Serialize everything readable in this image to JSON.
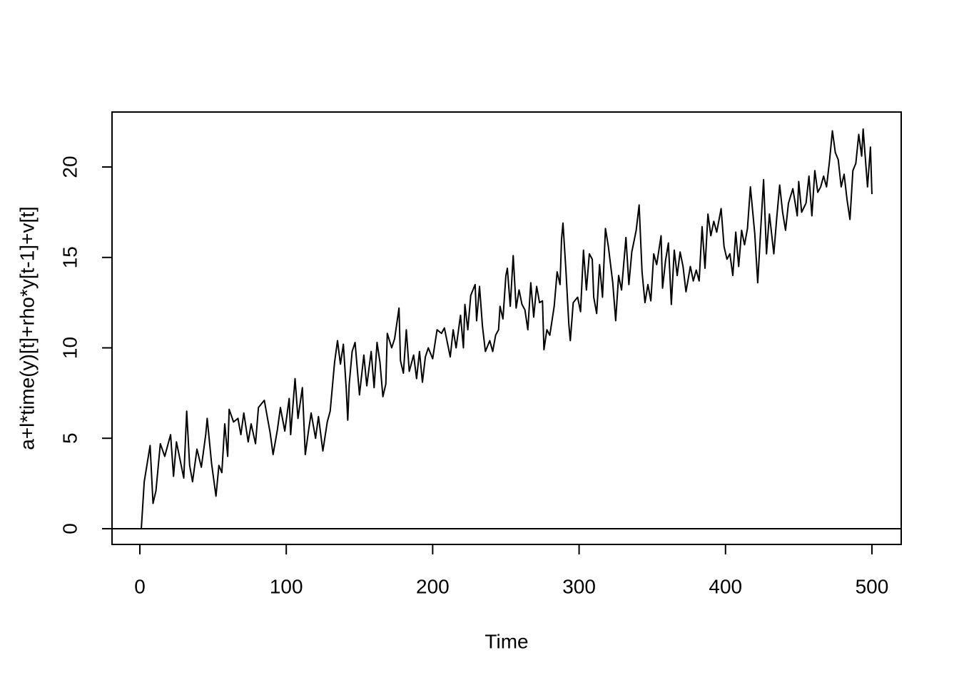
{
  "chart_data": {
    "type": "line",
    "x_label": "Time",
    "y_label": "a+l*time(y)[t]+rho*y[t-1]+v[t]",
    "xlim": [
      -19,
      520
    ],
    "ylim": [
      -0.87,
      23.04
    ],
    "xticks": [
      0,
      100,
      200,
      300,
      400,
      500
    ],
    "yticks": [
      0,
      5,
      10,
      15,
      20
    ],
    "hline": 0,
    "color": "#000000",
    "x": [
      1,
      3,
      7,
      9,
      11,
      14,
      17,
      21,
      23,
      25,
      30,
      32,
      34,
      36,
      39,
      42,
      45,
      46,
      49,
      52,
      54,
      56,
      58,
      60,
      61,
      64,
      67,
      69,
      71,
      74,
      76,
      79,
      81,
      85,
      89,
      91,
      94,
      96,
      99,
      102,
      103,
      106,
      108,
      111,
      113,
      115,
      117,
      120,
      122,
      125,
      128,
      130,
      133,
      135,
      137,
      139,
      141,
      142,
      143,
      145,
      147,
      150,
      153,
      155,
      158,
      160,
      162,
      164,
      166,
      168,
      169,
      172,
      174,
      177,
      178,
      180,
      182,
      184,
      187,
      189,
      191,
      193,
      195,
      197,
      200,
      203,
      206,
      208,
      210,
      212,
      214,
      216,
      219,
      221,
      222,
      224,
      226,
      229,
      230,
      232,
      234,
      236,
      239,
      241,
      243,
      245,
      246,
      248,
      250,
      251,
      253,
      255,
      257,
      259,
      261,
      263,
      265,
      267,
      269,
      271,
      273,
      275,
      276,
      278,
      280,
      283,
      285,
      287,
      288,
      289,
      291,
      293,
      294,
      296,
      299,
      301,
      303,
      305,
      307,
      309,
      310,
      312,
      314,
      316,
      318,
      320,
      323,
      325,
      327,
      329,
      332,
      334,
      336,
      339,
      341,
      343,
      345,
      347,
      349,
      351,
      353,
      356,
      357,
      359,
      361,
      363,
      365,
      367,
      369,
      371,
      373,
      376,
      378,
      380,
      382,
      384,
      386,
      388,
      390,
      392,
      394,
      397,
      399,
      401,
      403,
      405,
      407,
      409,
      411,
      413,
      415,
      417,
      420,
      422,
      424,
      426,
      428,
      430,
      433,
      435,
      437,
      439,
      441,
      443,
      446,
      449,
      450,
      452,
      455,
      457,
      459,
      461,
      463,
      465,
      467,
      469,
      471,
      473,
      475,
      477,
      479,
      481,
      483,
      485,
      487,
      489,
      491,
      493,
      494,
      497,
      498,
      499,
      500
    ],
    "values": [
      0,
      2.6,
      4.6,
      1.4,
      2.1,
      4.7,
      4.0,
      5.2,
      2.9,
      4.8,
      2.8,
      6.5,
      3.5,
      2.6,
      4.4,
      3.4,
      5.2,
      6.1,
      3.6,
      1.8,
      3.5,
      3.1,
      5.8,
      4.0,
      6.6,
      5.9,
      6.1,
      5.2,
      6.4,
      4.8,
      5.8,
      4.7,
      6.7,
      7.1,
      5.3,
      4.1,
      5.5,
      6.7,
      5.4,
      7.2,
      5.2,
      8.3,
      6.1,
      7.8,
      4.1,
      5.3,
      6.4,
      5.0,
      6.2,
      4.3,
      5.9,
      6.5,
      9.2,
      10.4,
      9.1,
      10.2,
      7.7,
      6.0,
      8.0,
      9.8,
      10.3,
      7.4,
      9.6,
      7.9,
      9.8,
      7.8,
      10.3,
      9.2,
      7.3,
      8.0,
      10.8,
      10.0,
      10.5,
      12.2,
      9.3,
      8.6,
      11.0,
      8.7,
      9.6,
      8.3,
      9.8,
      8.1,
      9.5,
      10.0,
      9.4,
      11.0,
      10.8,
      11.1,
      10.3,
      9.5,
      11.0,
      10.0,
      11.8,
      10.0,
      12.4,
      11.0,
      12.9,
      13.5,
      11.5,
      13.4,
      11.2,
      9.8,
      10.4,
      9.8,
      10.7,
      11.0,
      12.3,
      11.6,
      14.0,
      14.4,
      12.3,
      15.1,
      12.2,
      13.2,
      12.4,
      12.1,
      11.0,
      13.6,
      11.7,
      13.4,
      12.5,
      12.6,
      9.9,
      11.0,
      10.7,
      12.3,
      14.2,
      13.5,
      16.0,
      16.9,
      14.3,
      11.3,
      10.4,
      12.5,
      12.8,
      12.0,
      15.4,
      13.2,
      15.2,
      14.9,
      12.8,
      11.9,
      14.6,
      12.8,
      16.6,
      15.6,
      13.6,
      11.5,
      14.0,
      13.2,
      16.1,
      13.5,
      15.3,
      16.5,
      17.9,
      14.2,
      12.5,
      13.5,
      12.6,
      15.2,
      14.6,
      16.2,
      13.3,
      14.8,
      15.8,
      12.4,
      15.4,
      14.0,
      15.3,
      14.5,
      13.1,
      14.5,
      13.7,
      14.3,
      13.7,
      16.7,
      14.4,
      17.4,
      16.2,
      17.0,
      16.4,
      17.7,
      15.6,
      14.9,
      15.2,
      14.0,
      16.4,
      14.5,
      16.5,
      15.7,
      16.6,
      18.9,
      16.3,
      13.6,
      16.5,
      19.3,
      15.2,
      17.4,
      15.2,
      17.2,
      19.0,
      17.5,
      16.5,
      18.0,
      18.8,
      17.3,
      19.2,
      17.5,
      18.0,
      19.5,
      17.3,
      19.8,
      18.6,
      18.9,
      19.5,
      18.9,
      20.3,
      22.0,
      20.8,
      20.4,
      18.9,
      19.6,
      18.2,
      17.1,
      19.8,
      20.2,
      21.8,
      20.6,
      22.1,
      18.9,
      20.0,
      21.1,
      18.5
    ]
  }
}
